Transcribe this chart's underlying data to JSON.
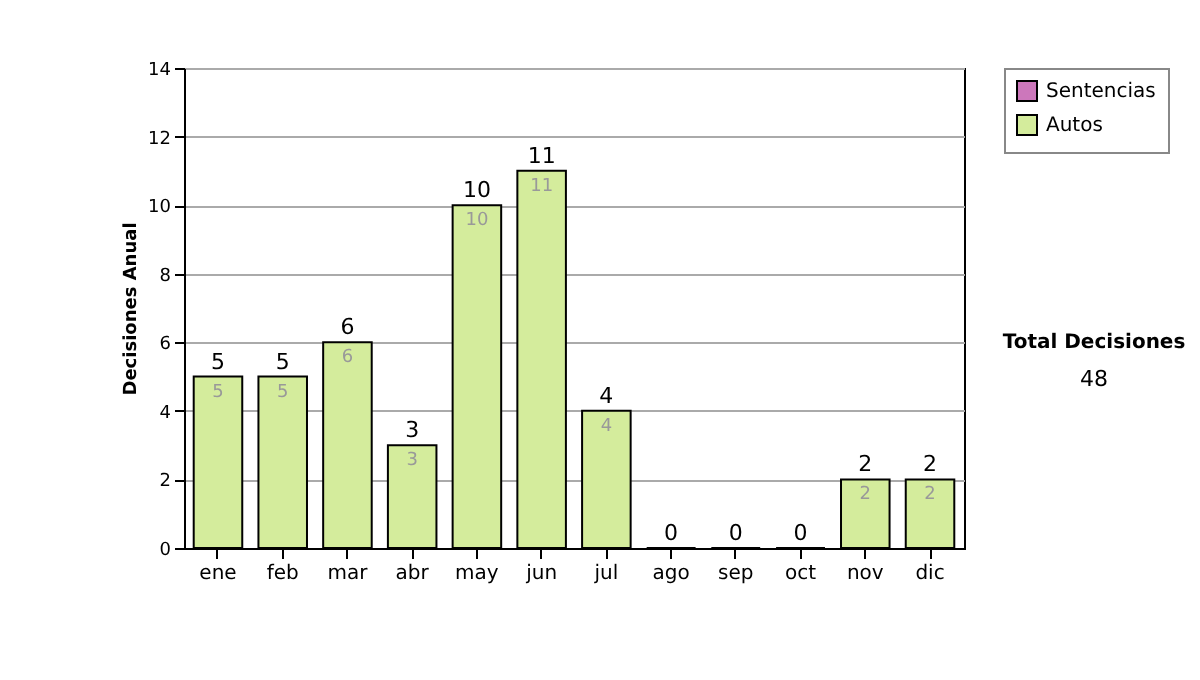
{
  "chart_data": {
    "type": "bar",
    "stacked": true,
    "ylabel": "Decisiones Anual",
    "categories": [
      "ene",
      "feb",
      "mar",
      "abr",
      "may",
      "jun",
      "jul",
      "ago",
      "sep",
      "oct",
      "nov",
      "dic"
    ],
    "series": [
      {
        "name": "Sentencias",
        "color": "#cc77bb",
        "values": [
          0,
          0,
          0,
          0,
          0,
          0,
          0,
          0,
          0,
          0,
          0,
          0
        ]
      },
      {
        "name": "Autos",
        "color": "#d4ec9c",
        "values": [
          5,
          5,
          6,
          3,
          10,
          11,
          4,
          0,
          0,
          0,
          2,
          2
        ],
        "value_labels": [
          "5",
          "5",
          "6",
          "3",
          "10",
          "11",
          "4",
          null,
          null,
          null,
          "2",
          "2"
        ]
      }
    ],
    "totals": [
      "5",
      "5",
      "6",
      "3",
      "10",
      "11",
      "4",
      "0",
      "0",
      "0",
      "2",
      "2"
    ],
    "ylim": [
      0,
      14
    ],
    "yticks": [
      0,
      2,
      4,
      6,
      8,
      10,
      12,
      14
    ],
    "grid": "y",
    "legend": "right",
    "annotations": [
      "Total Decisiones",
      "48"
    ]
  }
}
